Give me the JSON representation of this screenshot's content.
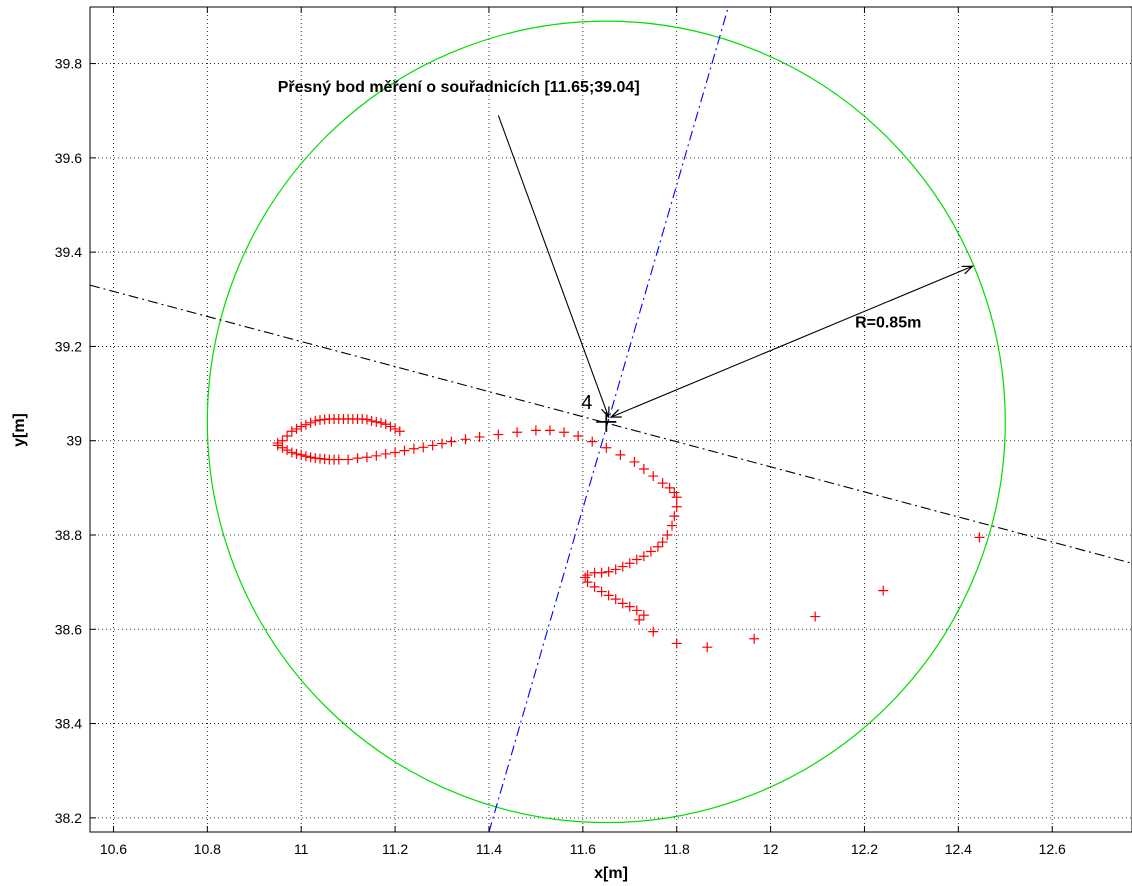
{
  "chart_data": {
    "type": "scatter",
    "title": "",
    "xlabel": "x[m]",
    "ylabel": "y[m]",
    "xlim": [
      10.55,
      12.77
    ],
    "ylim": [
      38.17,
      39.92
    ],
    "xticks": [
      10.6,
      10.8,
      11,
      11.2,
      11.4,
      11.6,
      11.8,
      12,
      12.2,
      12.4,
      12.6
    ],
    "xtick_labels": [
      "10.6",
      "10.8",
      "11",
      "11.2",
      "11.4",
      "11.6",
      "11.8",
      "12",
      "12.2",
      "12.4",
      "12.6"
    ],
    "yticks": [
      38.2,
      38.4,
      38.6,
      38.8,
      39,
      39.2,
      39.4,
      39.6,
      39.8
    ],
    "ytick_labels": [
      "38.2",
      "38.4",
      "38.6",
      "38.8",
      "39",
      "39.2",
      "39.4",
      "39.6",
      "39.8"
    ],
    "grid": true,
    "colors": {
      "track": "#ff0000",
      "circle": "#00dd00",
      "blue_line": "#0000ff",
      "black_line": "#000000"
    },
    "circle": {
      "cx": 11.65,
      "cy": 39.04,
      "r": 0.85,
      "color": "#00dd00"
    },
    "measurement_point": {
      "x": 11.65,
      "y": 39.04,
      "label": "4"
    },
    "lines": [
      {
        "name": "",
        "style": "dashdot",
        "color": "#0000ff",
        "points": [
          [
            11.4,
            38.17
          ],
          [
            11.91,
            39.92
          ]
        ]
      },
      {
        "name": "",
        "style": "dashdot",
        "color": "#000000",
        "points": [
          [
            10.55,
            39.33
          ],
          [
            12.77,
            38.74
          ]
        ]
      }
    ],
    "annotations": [
      {
        "text": "Přesný bod měření o souřadnicích [11.65;39.04]",
        "text_at": [
          10.95,
          39.74
        ],
        "arrow_from": [
          11.42,
          39.69
        ],
        "arrow_to": [
          11.655,
          39.05
        ]
      },
      {
        "text": "R=0.85m",
        "text_at": [
          12.18,
          39.24
        ],
        "arrow_from": [
          11.66,
          39.05
        ],
        "arrow_to": [
          12.43,
          39.37
        ],
        "double": true
      }
    ],
    "series": [
      {
        "name": "",
        "marker": "+",
        "color": "#ff0000",
        "points": [
          [
            11.21,
            39.02
          ],
          [
            11.2,
            39.025
          ],
          [
            11.19,
            39.03
          ],
          [
            11.18,
            39.035
          ],
          [
            11.17,
            39.038
          ],
          [
            11.16,
            39.04
          ],
          [
            11.15,
            39.042
          ],
          [
            11.14,
            39.045
          ],
          [
            11.13,
            39.046
          ],
          [
            11.12,
            39.046
          ],
          [
            11.11,
            39.046
          ],
          [
            11.1,
            39.046
          ],
          [
            11.09,
            39.046
          ],
          [
            11.08,
            39.046
          ],
          [
            11.07,
            39.046
          ],
          [
            11.06,
            39.046
          ],
          [
            11.05,
            39.045
          ],
          [
            11.04,
            39.044
          ],
          [
            11.03,
            39.042
          ],
          [
            11.02,
            39.038
          ],
          [
            11.01,
            39.034
          ],
          [
            11.0,
            39.03
          ],
          [
            10.99,
            39.025
          ],
          [
            10.98,
            39.02
          ],
          [
            10.97,
            39.01
          ],
          [
            10.96,
            39.0
          ],
          [
            10.95,
            38.995
          ],
          [
            10.95,
            38.99
          ],
          [
            10.96,
            38.985
          ],
          [
            10.97,
            38.98
          ],
          [
            10.98,
            38.975
          ],
          [
            10.99,
            38.972
          ],
          [
            11.0,
            38.97
          ],
          [
            11.01,
            38.967
          ],
          [
            11.02,
            38.965
          ],
          [
            11.03,
            38.963
          ],
          [
            11.04,
            38.962
          ],
          [
            11.05,
            38.961
          ],
          [
            11.06,
            38.96
          ],
          [
            11.07,
            38.96
          ],
          [
            11.08,
            38.96
          ],
          [
            11.1,
            38.96
          ],
          [
            11.12,
            38.963
          ],
          [
            11.14,
            38.965
          ],
          [
            11.16,
            38.968
          ],
          [
            11.18,
            38.972
          ],
          [
            11.2,
            38.975
          ],
          [
            11.22,
            38.979
          ],
          [
            11.24,
            38.983
          ],
          [
            11.26,
            38.986
          ],
          [
            11.28,
            38.99
          ],
          [
            11.3,
            38.994
          ],
          [
            11.32,
            38.998
          ],
          [
            11.35,
            39.003
          ],
          [
            11.38,
            39.008
          ],
          [
            11.42,
            39.013
          ],
          [
            11.46,
            39.018
          ],
          [
            11.5,
            39.022
          ],
          [
            11.53,
            39.022
          ],
          [
            11.56,
            39.018
          ],
          [
            11.59,
            39.01
          ],
          [
            11.62,
            38.998
          ],
          [
            11.65,
            38.985
          ],
          [
            11.68,
            38.97
          ],
          [
            11.71,
            38.955
          ],
          [
            11.73,
            38.94
          ],
          [
            11.75,
            38.925
          ],
          [
            11.77,
            38.91
          ],
          [
            11.785,
            38.9
          ],
          [
            11.795,
            38.89
          ],
          [
            11.8,
            38.88
          ],
          [
            11.8,
            38.86
          ],
          [
            11.795,
            38.84
          ],
          [
            11.79,
            38.82
          ],
          [
            11.78,
            38.8
          ],
          [
            11.77,
            38.785
          ],
          [
            11.76,
            38.775
          ],
          [
            11.745,
            38.765
          ],
          [
            11.73,
            38.755
          ],
          [
            11.715,
            38.748
          ],
          [
            11.7,
            38.74
          ],
          [
            11.685,
            38.733
          ],
          [
            11.67,
            38.727
          ],
          [
            11.655,
            38.722
          ],
          [
            11.64,
            38.72
          ],
          [
            11.625,
            38.72
          ],
          [
            11.61,
            38.715
          ],
          [
            11.605,
            38.71
          ],
          [
            11.61,
            38.7
          ],
          [
            11.625,
            38.69
          ],
          [
            11.64,
            38.68
          ],
          [
            11.655,
            38.672
          ],
          [
            11.67,
            38.664
          ],
          [
            11.685,
            38.655
          ],
          [
            11.7,
            38.648
          ],
          [
            11.715,
            38.64
          ],
          [
            11.73,
            38.63
          ],
          [
            11.72,
            38.62
          ],
          [
            11.75,
            38.595
          ],
          [
            11.8,
            38.57
          ],
          [
            11.865,
            38.562
          ],
          [
            11.965,
            38.58
          ],
          [
            12.095,
            38.627
          ],
          [
            12.24,
            38.682
          ],
          [
            12.445,
            38.795
          ]
        ]
      }
    ]
  }
}
